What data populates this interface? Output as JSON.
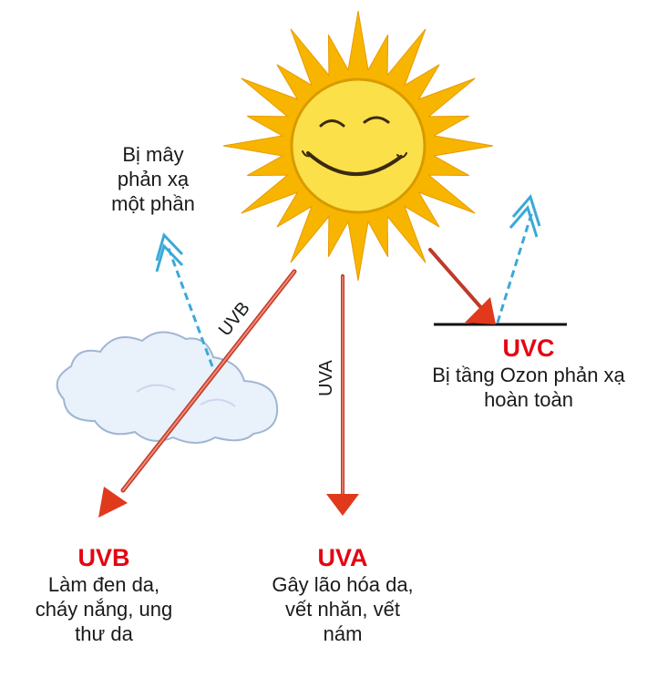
{
  "colors": {
    "sun_ray": "#f7b500",
    "sun_face": "#fbe04a",
    "arrow_red": "#e0391c",
    "reflect_blue": "#3aa9d8",
    "cloud": "#e9f1fb",
    "title_red": "#e30613",
    "text": "#1a1a1a"
  },
  "icons": [
    "sun-icon",
    "cloud-icon"
  ],
  "cloud_note": {
    "line1": "Bị mây",
    "line2": "phản xạ",
    "line3": "một phần"
  },
  "uvc": {
    "title": "UVC",
    "line1": "Bị tầng Ozon phản xạ",
    "line2": "hoàn toàn"
  },
  "uvb": {
    "ray_label": "UVB",
    "title": "UVB",
    "line1": "Làm đen da,",
    "line2": "cháy nắng, ung",
    "line3": "thư da"
  },
  "uva": {
    "ray_label": "UVA",
    "title": "UVA",
    "line1": "Gây lão hóa da,",
    "line2": "vết nhăn, vết",
    "line3": "nám"
  }
}
